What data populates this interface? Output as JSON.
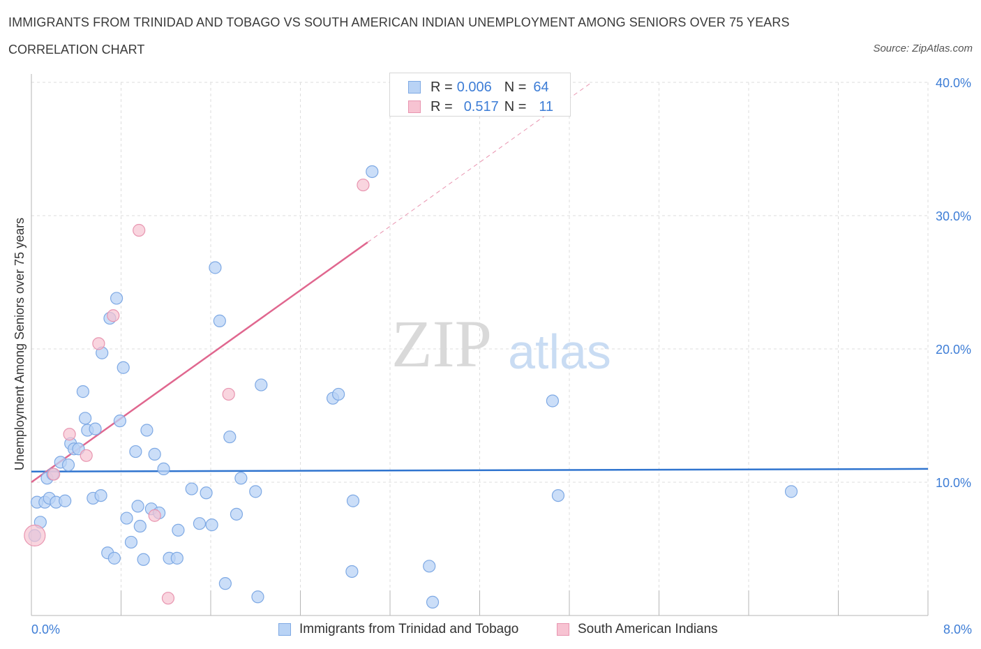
{
  "title": "IMMIGRANTS FROM TRINIDAD AND TOBAGO VS SOUTH AMERICAN INDIAN UNEMPLOYMENT AMONG SENIORS OVER 75 YEARS",
  "subtitle": "CORRELATION CHART",
  "source": "Source: ZipAtlas.com",
  "watermark": {
    "zip": "ZIP",
    "atlas": "atlas"
  },
  "colors": {
    "blue_fill": "#b9d3f5",
    "blue_stroke": "#7ea9e4",
    "blue_line": "#2f74cf",
    "pink_fill": "#f7c3d2",
    "pink_stroke": "#e895b0",
    "pink_line": "#e0678f",
    "grid": "#dddddd",
    "axis_text": "#3d7dd6"
  },
  "legend": {
    "rows": [
      {
        "r_label": "R =",
        "r_value": "0.006",
        "n_label": "N =",
        "n_value": "64"
      },
      {
        "r_label": "R =",
        "r_value": "0.517",
        "n_label": "N =",
        "n_value": "11"
      }
    ]
  },
  "chart_data": {
    "type": "scatter",
    "xlabel": "",
    "ylabel": "Unemployment Among Seniors over 75 years",
    "xlim": [
      0,
      8
    ],
    "ylim": [
      0,
      40
    ],
    "x_tick_labels": [
      "0.0%",
      "8.0%"
    ],
    "y_ticks": [
      10,
      20,
      30,
      40
    ],
    "y_tick_labels": [
      "10.0%",
      "20.0%",
      "30.0%",
      "40.0%"
    ],
    "grid": true,
    "legend_position": "bottom",
    "series": [
      {
        "name": "Immigrants from Trinidad and Tobago",
        "color": "blue",
        "R": 0.006,
        "N": 64,
        "trend": {
          "x0": 0.0,
          "y0": 10.8,
          "x1": 8.0,
          "y1": 11.0
        },
        "points": [
          [
            0.03,
            6.0
          ],
          [
            0.05,
            8.5
          ],
          [
            0.08,
            7.0
          ],
          [
            0.12,
            8.5
          ],
          [
            0.14,
            10.3
          ],
          [
            0.16,
            8.8
          ],
          [
            0.19,
            10.6
          ],
          [
            0.22,
            8.5
          ],
          [
            0.26,
            11.5
          ],
          [
            0.3,
            8.6
          ],
          [
            0.33,
            11.3
          ],
          [
            0.35,
            12.9
          ],
          [
            0.38,
            12.5
          ],
          [
            0.42,
            12.5
          ],
          [
            0.46,
            16.8
          ],
          [
            0.48,
            14.8
          ],
          [
            0.5,
            13.9
          ],
          [
            0.57,
            14.0
          ],
          [
            0.55,
            8.8
          ],
          [
            0.62,
            9.0
          ],
          [
            0.63,
            19.7
          ],
          [
            0.68,
            4.7
          ],
          [
            0.7,
            22.3
          ],
          [
            0.74,
            4.3
          ],
          [
            0.76,
            23.8
          ],
          [
            0.79,
            14.6
          ],
          [
            0.82,
            18.6
          ],
          [
            0.85,
            7.3
          ],
          [
            0.89,
            5.5
          ],
          [
            0.93,
            12.3
          ],
          [
            0.95,
            8.2
          ],
          [
            0.97,
            6.7
          ],
          [
            1.0,
            4.2
          ],
          [
            1.03,
            13.9
          ],
          [
            1.07,
            8.0
          ],
          [
            1.1,
            12.1
          ],
          [
            1.14,
            7.7
          ],
          [
            1.18,
            11.0
          ],
          [
            1.23,
            4.3
          ],
          [
            1.3,
            4.3
          ],
          [
            1.31,
            6.4
          ],
          [
            1.43,
            9.5
          ],
          [
            1.5,
            6.9
          ],
          [
            1.56,
            9.2
          ],
          [
            1.61,
            6.8
          ],
          [
            1.64,
            26.1
          ],
          [
            1.68,
            22.1
          ],
          [
            1.73,
            2.4
          ],
          [
            1.77,
            13.4
          ],
          [
            1.83,
            7.6
          ],
          [
            1.87,
            10.3
          ],
          [
            2.0,
            9.3
          ],
          [
            2.02,
            1.4
          ],
          [
            2.05,
            17.3
          ],
          [
            2.69,
            16.3
          ],
          [
            2.74,
            16.6
          ],
          [
            2.86,
            3.3
          ],
          [
            2.87,
            8.6
          ],
          [
            3.04,
            33.3
          ],
          [
            3.55,
            3.7
          ],
          [
            3.58,
            1.0
          ],
          [
            4.65,
            16.1
          ],
          [
            4.7,
            9.0
          ],
          [
            6.78,
            9.3
          ]
        ]
      },
      {
        "name": "South American Indians",
        "color": "pink",
        "R": 0.517,
        "N": 11,
        "trend": {
          "x0": 0.0,
          "y0": 10.0,
          "x1": 3.0,
          "y1": 28.0
        },
        "trend_ext": {
          "x0": 3.0,
          "y0": 28.0,
          "x1": 5.0,
          "y1": 40.0
        },
        "points": [
          [
            0.03,
            6.0
          ],
          [
            0.2,
            10.6
          ],
          [
            0.34,
            13.6
          ],
          [
            0.49,
            12.0
          ],
          [
            0.6,
            20.4
          ],
          [
            0.73,
            22.5
          ],
          [
            0.96,
            28.9
          ],
          [
            1.1,
            7.5
          ],
          [
            1.22,
            1.3
          ],
          [
            1.76,
            16.6
          ],
          [
            2.96,
            32.3
          ]
        ]
      }
    ]
  }
}
